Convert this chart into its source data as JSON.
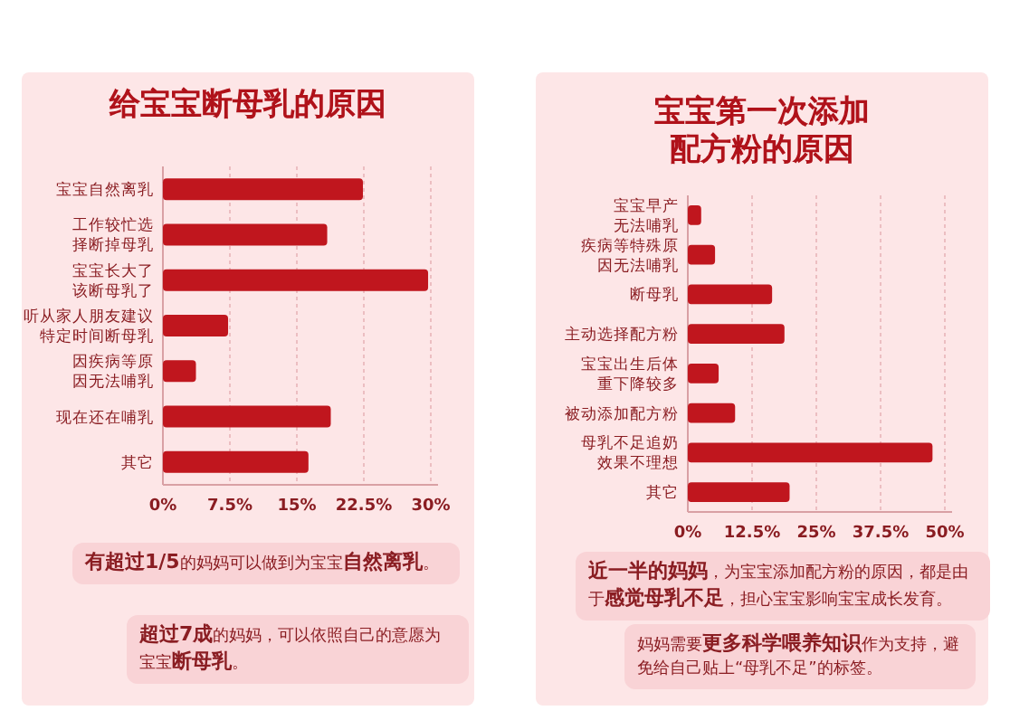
{
  "chart_data": [
    {
      "type": "bar",
      "orientation": "horizontal",
      "title": "给宝宝断母乳的原因",
      "categories": [
        "宝宝自然离乳",
        "工作较忙选择断掉母乳",
        "宝宝长大了该断母乳了",
        "听从家人朋友建议特定时间断母乳",
        "因疾病等原因无法哺乳",
        "现在还在哺乳",
        "其它"
      ],
      "values": [
        22.4,
        18.4,
        29.7,
        7.3,
        3.7,
        18.8,
        16.3
      ],
      "color": "#c0161e",
      "xlim": [
        0,
        30
      ],
      "xticks": [
        {
          "value": 0,
          "label": "0%"
        },
        {
          "value": 7.5,
          "label": "7.5%"
        },
        {
          "value": 15,
          "label": "15%"
        },
        {
          "value": 22.5,
          "label": "22.5%"
        },
        {
          "value": 30,
          "label": "30%"
        }
      ],
      "grid": "x",
      "annotations": [
        "**有超过1/5**的妈妈可以做到为宝宝**自然离乳**。",
        "**超过7成**的妈妈，可以依照自己的意愿为宝宝**断母乳**。"
      ]
    },
    {
      "type": "bar",
      "orientation": "horizontal",
      "title": "宝宝第一次添加配方粉的原因",
      "categories": [
        "宝宝早产无法哺乳",
        "疾病等特殊原因无法哺乳",
        "断母乳",
        "主动选择配方粉",
        "宝宝出生后体重下降较多",
        "被动添加配方粉",
        "母乳不足追奶效果不理想",
        "其它"
      ],
      "values": [
        2.6,
        5.3,
        16.4,
        18.8,
        6.0,
        9.2,
        47.6,
        19.8
      ],
      "color": "#c0161e",
      "xlim": [
        0,
        50
      ],
      "xticks": [
        {
          "value": 0,
          "label": "0%"
        },
        {
          "value": 12.5,
          "label": "12.5%"
        },
        {
          "value": 25,
          "label": "25%"
        },
        {
          "value": 37.5,
          "label": "37.5%"
        },
        {
          "value": 50,
          "label": "50%"
        }
      ],
      "grid": "x",
      "annotations": [
        "**近一半的妈妈**，为宝宝添加配方粉的原因，都是由于**感觉母乳不足**，担心宝宝影响宝宝成长发育。",
        "妈妈需要**更多科学喂养知识**作为支持，避免给自己贴上“母乳不足”的标签。"
      ]
    }
  ]
}
